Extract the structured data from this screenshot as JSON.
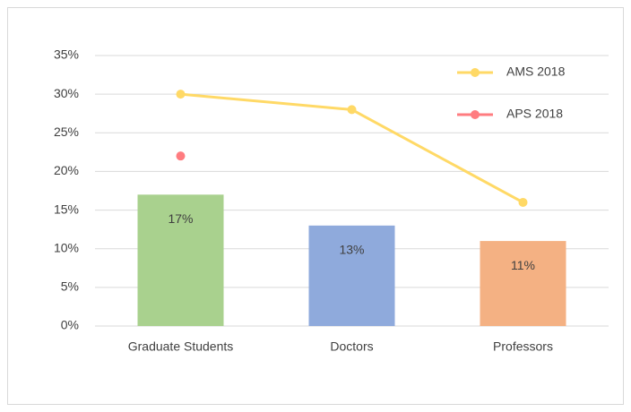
{
  "chart_data": {
    "type": "bar",
    "categories": [
      "Graduate Students",
      "Doctors",
      "Professors"
    ],
    "values": [
      17,
      13,
      11
    ],
    "value_labels": [
      "17%",
      "13%",
      "11%"
    ],
    "colors": [
      "#a9d18e",
      "#8faadc",
      "#f4b183"
    ],
    "series": [
      {
        "name": "AMS 2018",
        "color": "#ffd966",
        "values": [
          30,
          28,
          16
        ]
      },
      {
        "name": "APS 2018",
        "color": "#ff7c80",
        "values": [
          22,
          null,
          null
        ]
      }
    ],
    "ylim": [
      0,
      35
    ],
    "yticks": [
      {
        "value": 0,
        "label": "0%"
      },
      {
        "value": 5,
        "label": "5%"
      },
      {
        "value": 10,
        "label": "10%"
      },
      {
        "value": 15,
        "label": "15%"
      },
      {
        "value": 20,
        "label": "20%"
      },
      {
        "value": 25,
        "label": "25%"
      },
      {
        "value": 30,
        "label": "30%"
      },
      {
        "value": 35,
        "label": "35%"
      }
    ],
    "grid": true,
    "legend": "top-right"
  }
}
